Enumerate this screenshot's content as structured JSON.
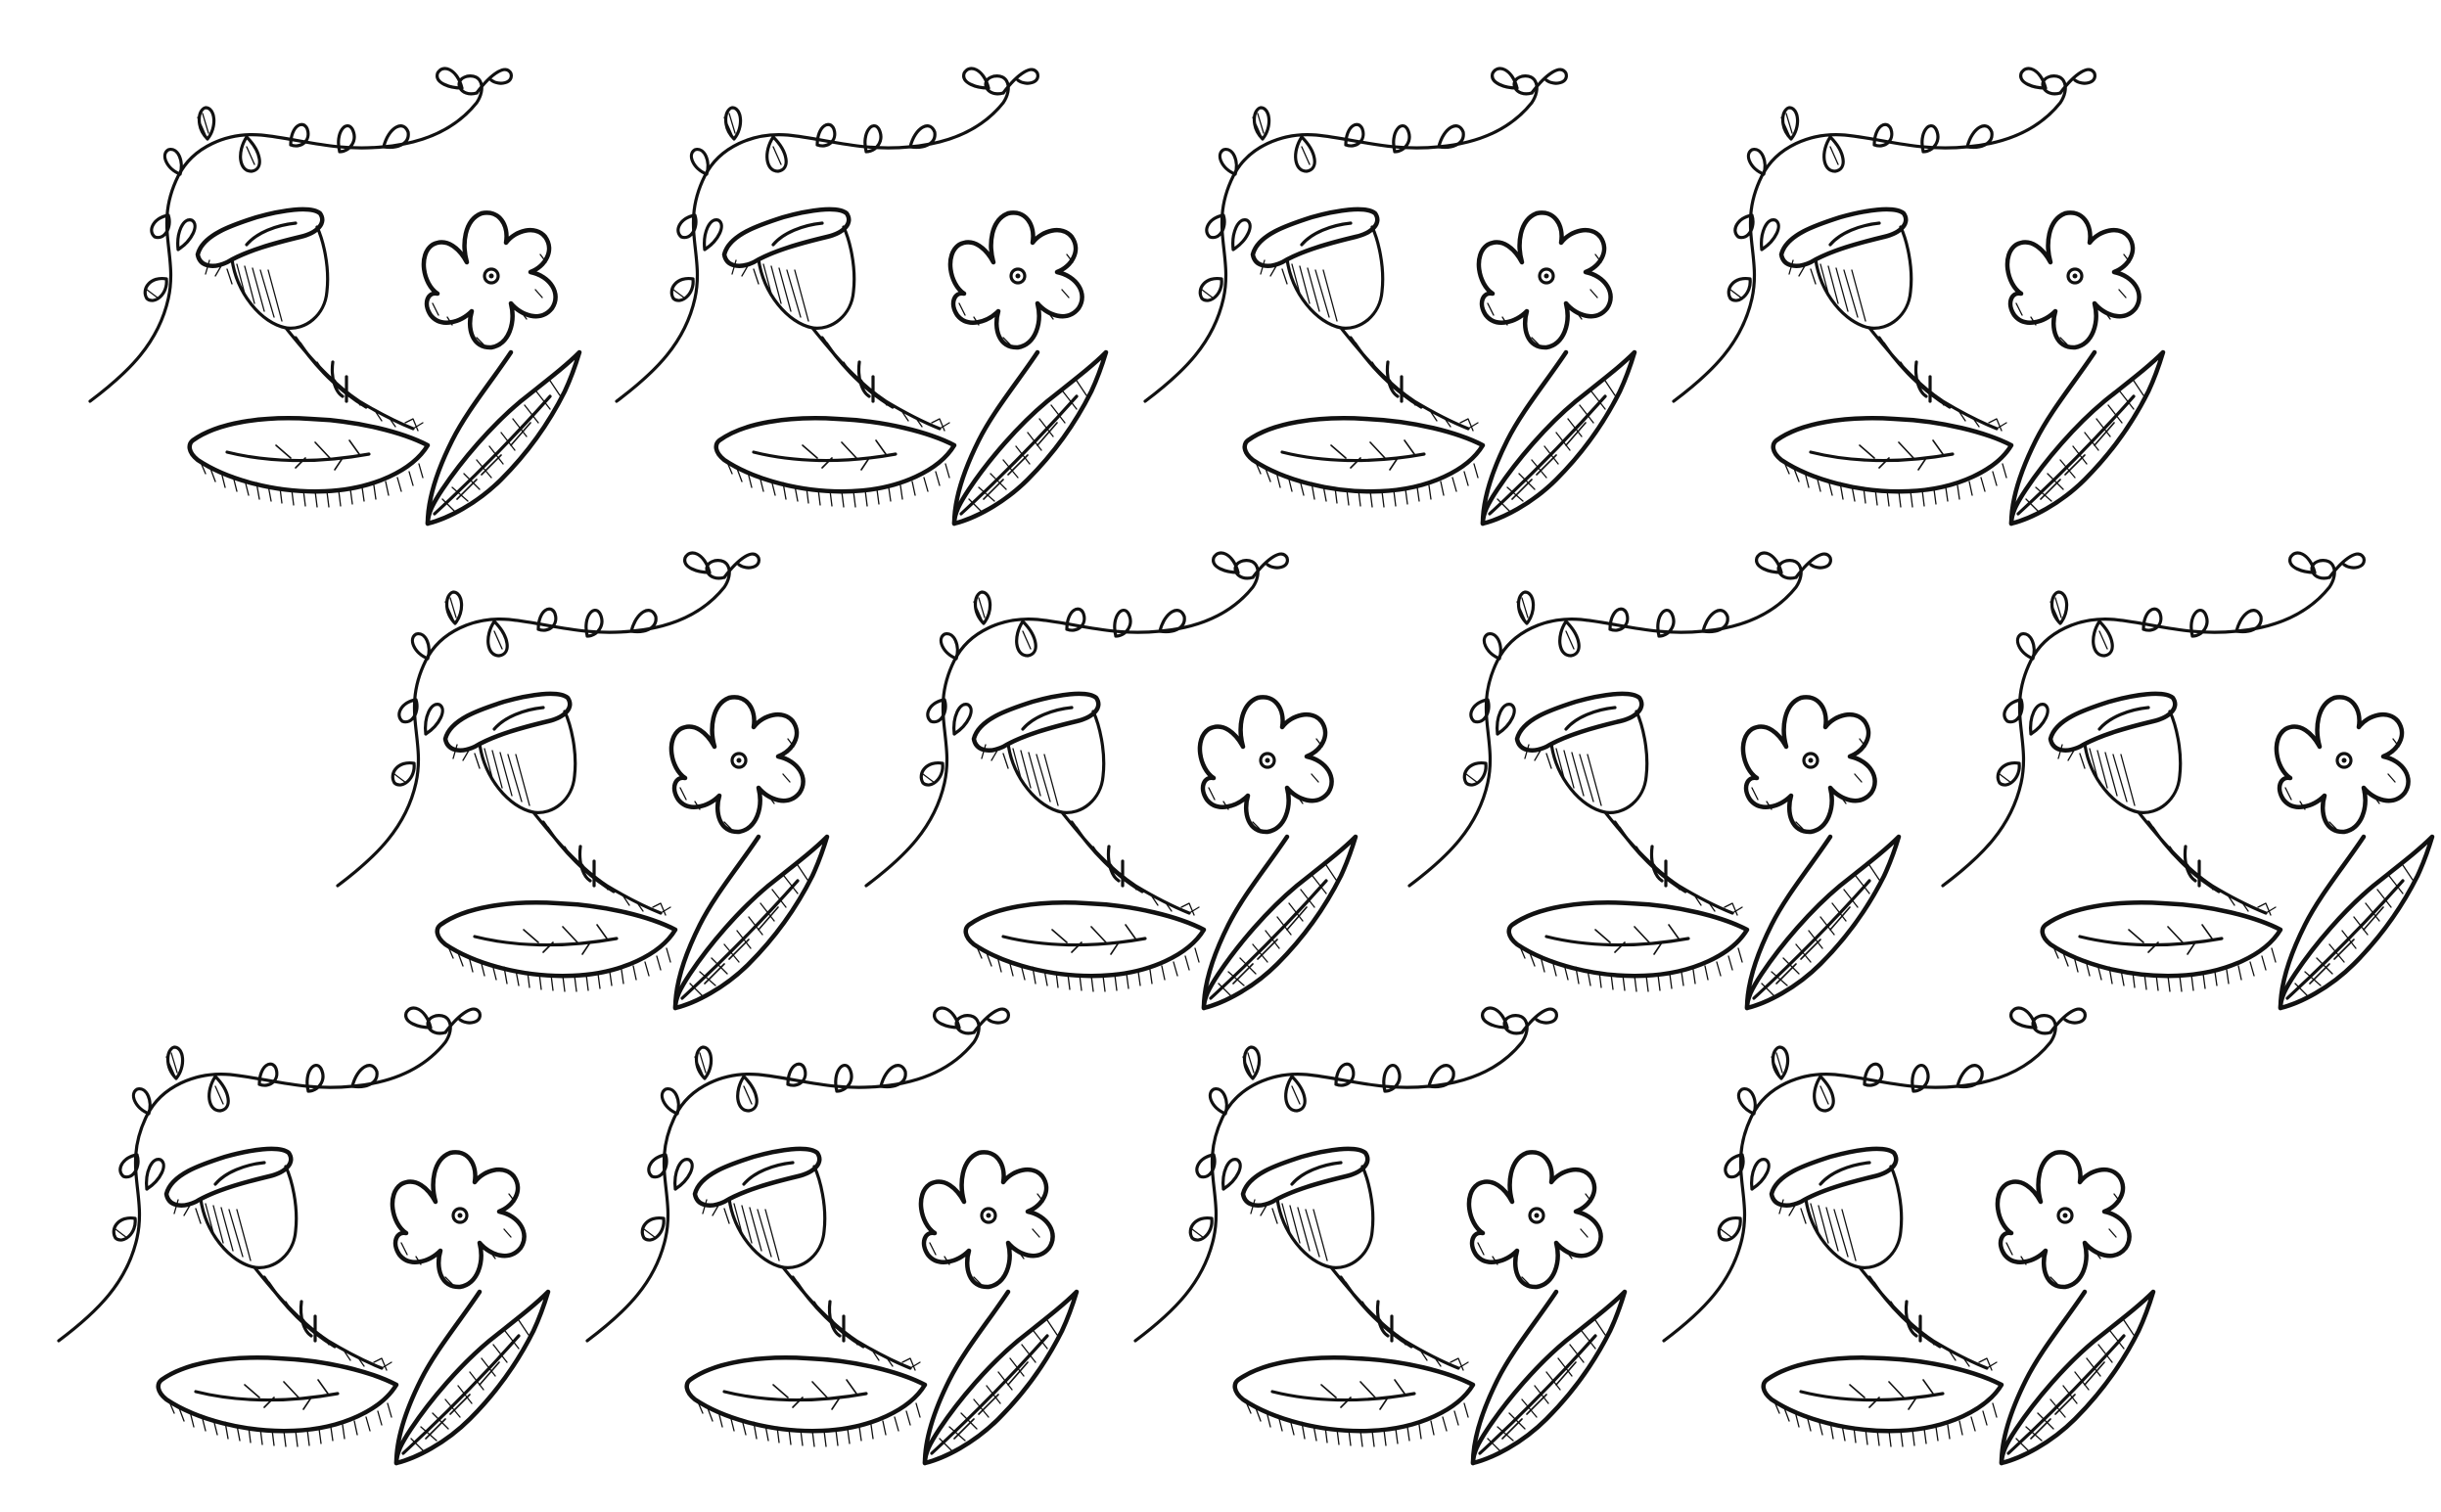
{
  "illustration": {
    "style": "black ink hand-drawn sketch on white",
    "background_color": "#ffffff",
    "ink_color": "#111111",
    "motif": "floral-cluster",
    "motif_parts": [
      "curling-vine-with-buds",
      "bell-flower-with-stem",
      "four-petal-flower",
      "oval-leaf",
      "pointed-leaf"
    ],
    "rows": [
      {
        "motif_count": 4
      },
      {
        "motif_count": 4
      },
      {
        "motif_count": 4
      }
    ]
  }
}
